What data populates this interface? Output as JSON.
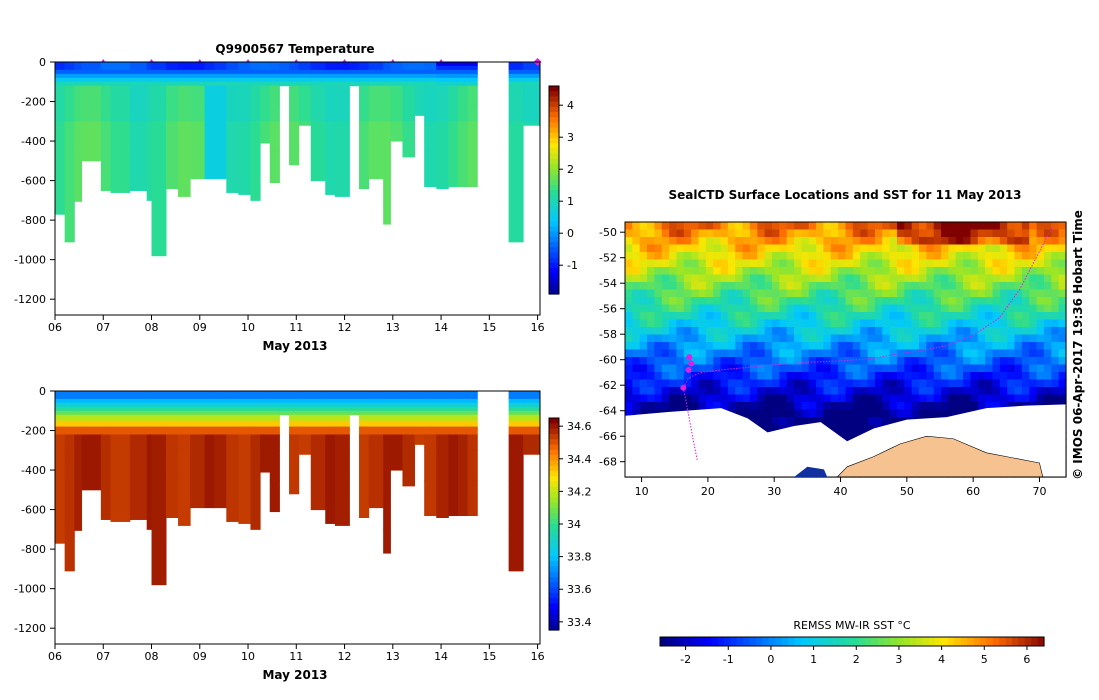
{
  "chart_data": [
    {
      "type": "heatmap",
      "title": "Q9900567  Temperature",
      "xlabel": "May 2013",
      "x_ticks": [
        "06",
        "07",
        "08",
        "09",
        "10",
        "11",
        "12",
        "13",
        "14",
        "15",
        "16"
      ],
      "y_ticks": [
        "0",
        "-200",
        "-400",
        "-600",
        "-800",
        "-1000",
        "-1200"
      ],
      "xlim": [
        6,
        16.05
      ],
      "ylim": [
        -1280,
        0
      ],
      "colorbar": {
        "range": [
          -1.9,
          4.6
        ],
        "ticks": [
          "4",
          "3",
          "2",
          "1",
          "0",
          "-1"
        ]
      },
      "profile_times": [
        6.0,
        6.2,
        6.4,
        6.55,
        6.95,
        7.15,
        7.55,
        7.9,
        8.0,
        8.3,
        8.55,
        8.8,
        9.1,
        9.3,
        9.55,
        9.8,
        10.05,
        10.25,
        10.45,
        10.65,
        10.85,
        11.05,
        11.3,
        11.6,
        11.8,
        12.1,
        12.3,
        12.5,
        12.8,
        12.95,
        13.2,
        13.45,
        13.65,
        13.9,
        14.15,
        14.35,
        14.55,
        15.4,
        15.7
      ],
      "profile_depths": [
        770,
        910,
        705,
        500,
        650,
        660,
        650,
        700,
        980,
        640,
        680,
        590,
        590,
        590,
        660,
        670,
        700,
        410,
        610,
        120,
        520,
        320,
        600,
        670,
        680,
        120,
        640,
        590,
        820,
        400,
        480,
        270,
        630,
        640,
        630,
        630,
        630,
        910,
        320
      ],
      "surface_markers_day": [
        7.0,
        8.0,
        9.0,
        10.0,
        11.0,
        12.0,
        13.0,
        14.0,
        16.0
      ]
    },
    {
      "type": "heatmap",
      "title": "",
      "xlabel": "May 2013",
      "x_ticks": [
        "06",
        "07",
        "08",
        "09",
        "10",
        "11",
        "12",
        "13",
        "14",
        "15",
        "16"
      ],
      "y_ticks": [
        "0",
        "-200",
        "-400",
        "-600",
        "-800",
        "-1000",
        "-1200"
      ],
      "xlim": [
        6,
        16.05
      ],
      "ylim": [
        -1280,
        0
      ],
      "colorbar": {
        "range": [
          33.35,
          34.65
        ],
        "ticks": [
          "34.6",
          "34.4",
          "34.2",
          "34",
          "33.8",
          "33.6",
          "33.4"
        ]
      }
    },
    {
      "type": "heatmap",
      "title": "SealCTD Surface Locations and SST for 11 May 2013",
      "x_ticks": [
        "10",
        "20",
        "30",
        "40",
        "50",
        "60",
        "70"
      ],
      "y_ticks": [
        "-50",
        "-52",
        "-54",
        "-56",
        "-58",
        "-60",
        "-62",
        "-64",
        "-66",
        "-68"
      ],
      "xlim": [
        7.5,
        74
      ],
      "ylim": [
        -69.2,
        -49.2
      ],
      "side_label": "© IMOS 06-Apr-2017 19:36 Hobart Time",
      "colorbar_label": "REMSS MW-IR SST °C",
      "colorbar_ticks": [
        "-2",
        "-1",
        "0",
        "1",
        "2",
        "3",
        "4",
        "5",
        "6"
      ],
      "colorbar_range": [
        -2.6,
        6.4
      ],
      "track": [
        [
          16.3,
          -62.2
        ],
        [
          17,
          -61.5
        ],
        [
          18,
          -61.2
        ],
        [
          19,
          -61
        ],
        [
          22,
          -60.8
        ],
        [
          26,
          -60.6
        ],
        [
          30,
          -60.4
        ],
        [
          35,
          -60.2
        ],
        [
          40,
          -60.1
        ],
        [
          45,
          -59.9
        ],
        [
          48,
          -59.6
        ],
        [
          52,
          -59.3
        ],
        [
          56,
          -58.9
        ],
        [
          60,
          -58.1
        ],
        [
          64,
          -56.7
        ],
        [
          67,
          -54.5
        ],
        [
          69,
          -52.5
        ],
        [
          71,
          -50.5
        ],
        [
          72,
          -49.6
        ]
      ],
      "track_south": [
        [
          16.3,
          -62.2
        ],
        [
          16.9,
          -63.8
        ],
        [
          17.4,
          -65.2
        ],
        [
          17.9,
          -66.6
        ],
        [
          18.4,
          -67.9
        ]
      ],
      "marker_points": [
        [
          16.3,
          -62.2
        ],
        [
          17.2,
          -59.8
        ],
        [
          17.5,
          -60.3
        ],
        [
          17.1,
          -60.8
        ]
      ]
    }
  ]
}
